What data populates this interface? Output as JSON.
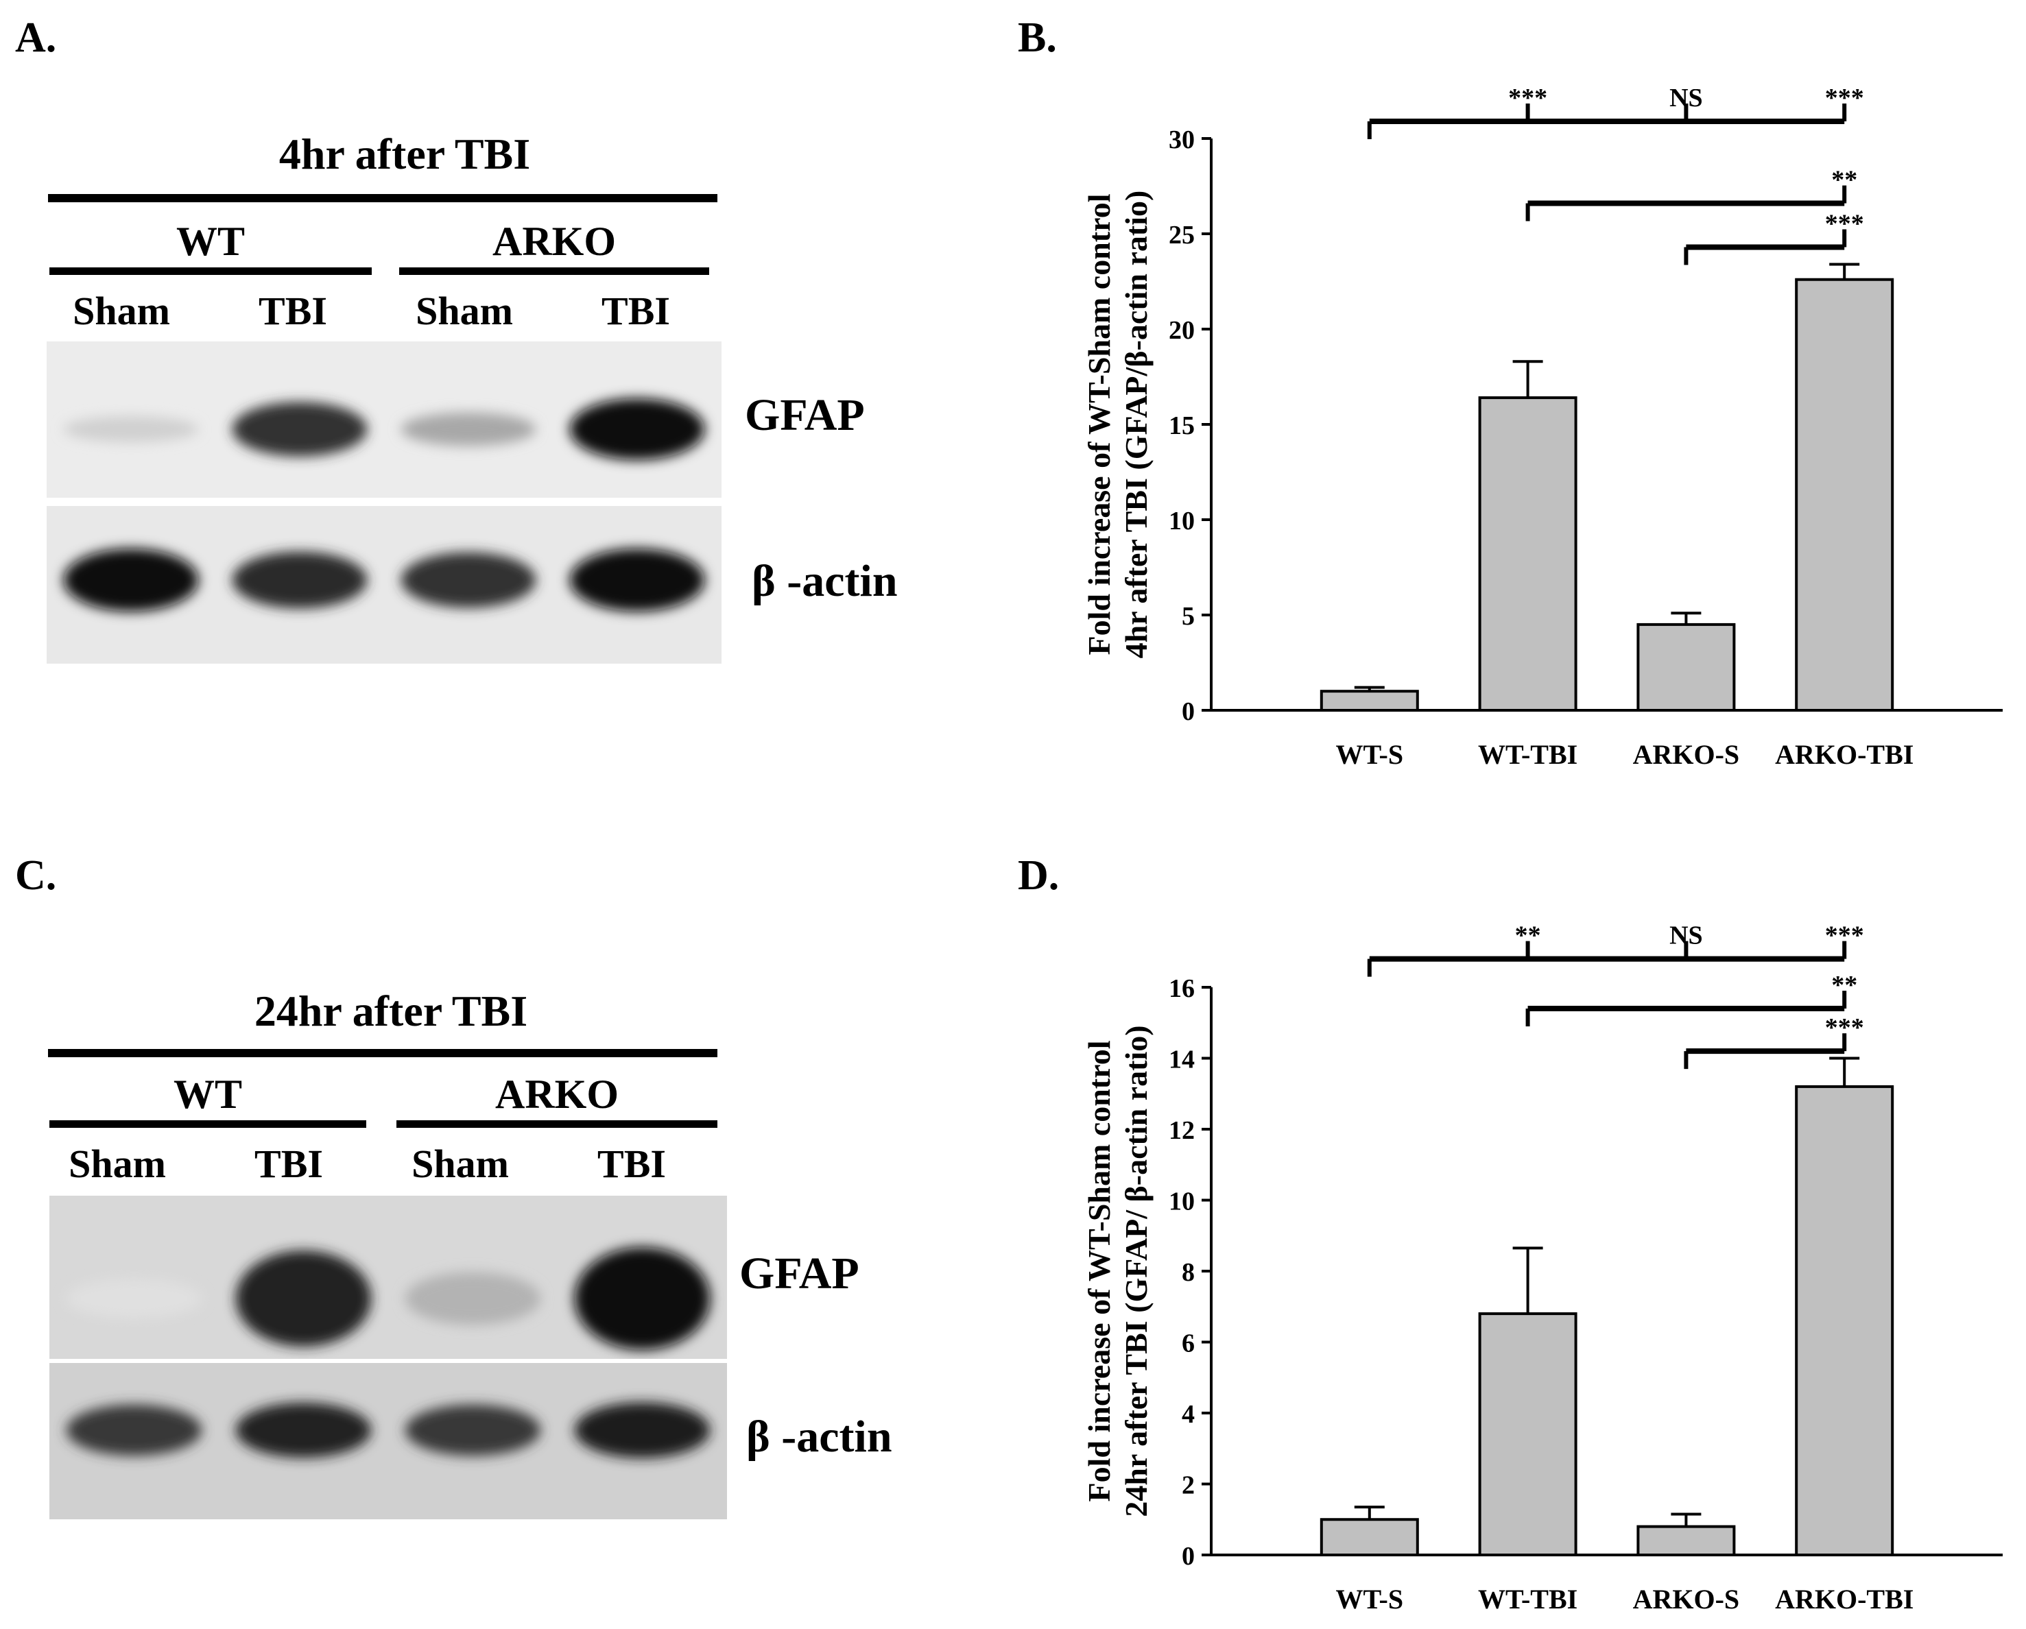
{
  "panels": {
    "A": {
      "letter": "A.",
      "title": "4hr after TBI",
      "groups": [
        "WT",
        "ARKO"
      ],
      "lanes": [
        "Sham",
        "TBI",
        "Sham",
        "TBI"
      ],
      "proteins": [
        "GFAP",
        "β -actin"
      ],
      "gfap_intensity": [
        0.12,
        0.82,
        0.3,
        1.0
      ],
      "actin_intensity": [
        1.0,
        0.85,
        0.82,
        1.0
      ]
    },
    "C": {
      "letter": "C.",
      "title": "24hr after TBI",
      "groups": [
        "WT",
        "ARKO"
      ],
      "lanes": [
        "Sham",
        "TBI",
        "Sham",
        "TBI"
      ],
      "proteins": [
        "GFAP",
        "β -actin"
      ],
      "gfap_intensity": [
        0.05,
        0.9,
        0.25,
        1.0
      ],
      "actin_intensity": [
        0.8,
        0.9,
        0.8,
        0.92
      ]
    },
    "B": {
      "letter": "B."
    },
    "D": {
      "letter": "D."
    }
  },
  "chart_data": [
    {
      "panel": "B",
      "type": "bar",
      "categories": [
        "WT-S",
        "WT-TBI",
        "ARKO-S",
        "ARKO-TBI"
      ],
      "values": [
        1.0,
        16.4,
        4.5,
        22.6
      ],
      "errors": [
        0.2,
        1.9,
        0.6,
        0.8
      ],
      "ylabel_line1": "Fold increase of WT-Sham control",
      "ylabel_line2": "4hr after TBI (GFAP/β-actin ratio)",
      "ylim": [
        0,
        30
      ],
      "yticks": [
        0,
        5,
        10,
        15,
        20,
        25,
        30
      ],
      "bar_color": "#c0c0c0",
      "significance": [
        {
          "from": "WT-S",
          "to": "ARKO-TBI",
          "level": 30.9,
          "marks": [
            {
              "at": "WT-TBI",
              "label": "***"
            },
            {
              "at": "ARKO-S",
              "label": "NS"
            },
            {
              "at": "ARKO-TBI",
              "label": "***"
            }
          ]
        },
        {
          "from": "WT-TBI",
          "to": "ARKO-TBI",
          "level": 26.6,
          "marks": [
            {
              "at": "ARKO-TBI",
              "label": "**"
            }
          ]
        },
        {
          "from": "ARKO-S",
          "to": "ARKO-TBI",
          "level": 24.3,
          "marks": [
            {
              "at": "ARKO-TBI",
              "label": "***"
            }
          ]
        }
      ]
    },
    {
      "panel": "D",
      "type": "bar",
      "categories": [
        "WT-S",
        "WT-TBI",
        "ARKO-S",
        "ARKO-TBI"
      ],
      "values": [
        1.0,
        6.8,
        0.8,
        13.2
      ],
      "errors": [
        0.35,
        1.85,
        0.35,
        0.8
      ],
      "ylabel_line1": "Fold increase of WT-Sham control",
      "ylabel_line2": "24hr after TBI (GFAP/ β-actin ratio)",
      "ylim": [
        0,
        16
      ],
      "yticks": [
        0,
        2,
        4,
        6,
        8,
        10,
        12,
        14,
        16
      ],
      "bar_color": "#c0c0c0",
      "significance": [
        {
          "from": "WT-S",
          "to": "ARKO-TBI",
          "level": 16.8,
          "marks": [
            {
              "at": "WT-TBI",
              "label": "**"
            },
            {
              "at": "ARKO-S",
              "label": "NS"
            },
            {
              "at": "ARKO-TBI",
              "label": "***"
            }
          ]
        },
        {
          "from": "WT-TBI",
          "to": "ARKO-TBI",
          "level": 15.4,
          "marks": [
            {
              "at": "ARKO-TBI",
              "label": "**"
            }
          ]
        },
        {
          "from": "ARKO-S",
          "to": "ARKO-TBI",
          "level": 14.2,
          "marks": [
            {
              "at": "ARKO-TBI",
              "label": "***"
            }
          ]
        }
      ]
    }
  ]
}
